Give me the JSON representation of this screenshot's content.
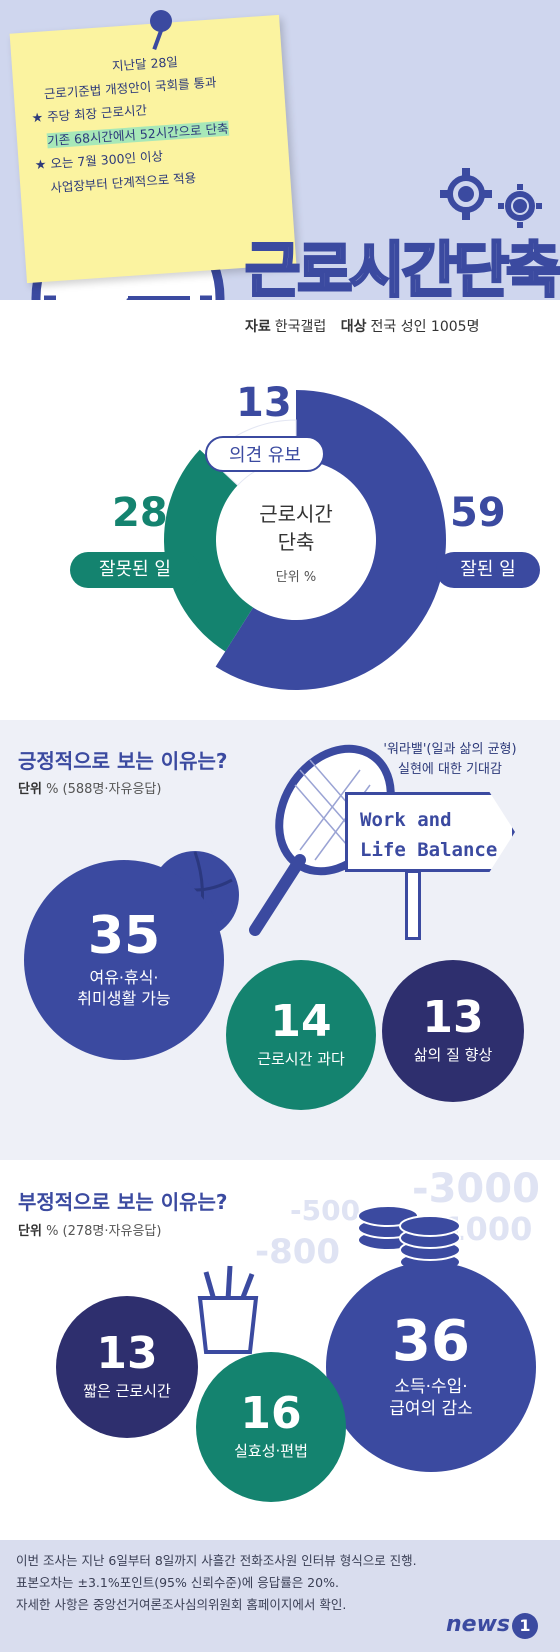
{
  "note": {
    "lines": [
      "지난달 28일",
      "근로기준법 개정안이 국회를 통과",
      "주당 최장 근로시간",
      "기존 68시간에서 52시간으로 단축",
      "오는 7월 300인 이상",
      "사업장부터 단계적으로 적용"
    ],
    "star": "★"
  },
  "title": "근로시간단축",
  "source": {
    "label1": "자료",
    "value1": "한국갤럽",
    "label2": "대상",
    "value2": "전국 성인 1005명"
  },
  "donut": {
    "center_title_1": "근로시간",
    "center_title_2": "단축",
    "unit": "단위 %",
    "segments": [
      {
        "name": "잘된 일",
        "value": 59,
        "color": "#3b4aa0"
      },
      {
        "name": "잘못된 일",
        "value": 28,
        "color": "#14836f"
      },
      {
        "name": "의견 유보",
        "value": 13,
        "color": "#ffffff"
      }
    ],
    "good_value": "59",
    "good_label": "잘된 일",
    "bad_value": "28",
    "bad_label": "잘못된 일",
    "reserve_value": "13",
    "reserve_label": "의견 유보"
  },
  "positive": {
    "title": "긍정적으로 보는 이유는?",
    "unit_bold": "단위",
    "unit_rest": "% (588명·자유응답)",
    "note_1": "'워라밸'(일과 삶의 균형)",
    "note_2": "실현에 대한 기대감",
    "sign_1": "Work and",
    "sign_2": "Life Balance",
    "items": [
      {
        "value": "35",
        "label_1": "여유·휴식·",
        "label_2": "취미생활 가능",
        "color": "#3b4aa0"
      },
      {
        "value": "14",
        "label_1": "근로시간 과다",
        "label_2": "",
        "color": "#14836f"
      },
      {
        "value": "13",
        "label_1": "삶의 질 향상",
        "label_2": "",
        "color": "#2e2f6e"
      }
    ]
  },
  "negative": {
    "title": "부정적으로 보는 이유는?",
    "unit_bold": "단위",
    "unit_rest": "% (278명·자유응답)",
    "bg_numbers": [
      "-3000",
      "-500",
      "-1000",
      "-800"
    ],
    "items": [
      {
        "value": "13",
        "label_1": "짧은 근로시간",
        "label_2": "",
        "color": "#2e2f6e"
      },
      {
        "value": "16",
        "label_1": "실효성·편법",
        "label_2": "",
        "color": "#14836f"
      },
      {
        "value": "36",
        "label_1": "소득·수입·",
        "label_2": "급여의 감소",
        "color": "#3b4aa0"
      }
    ]
  },
  "footer": {
    "line_1": "이번 조사는 지난 6일부터 8일까지 사흘간 전화조사원 인터뷰 형식으로 진행.",
    "line_2": "표본오차는 ±3.1%포인트(95% 신뢰수준)에 응답률은 20%.",
    "line_3": "자세한 사항은 중앙선거여론조사심의위원회 홈페이지에서 확인.",
    "logo": "news",
    "logo_mark": "1"
  }
}
